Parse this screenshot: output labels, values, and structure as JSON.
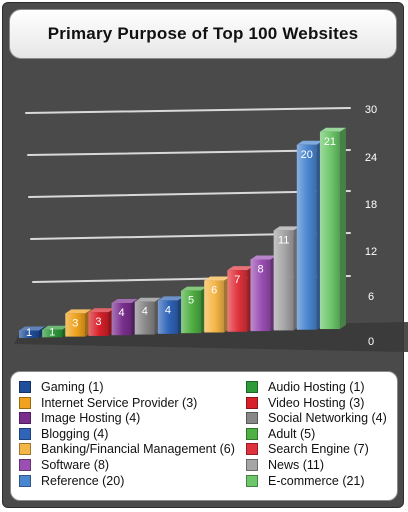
{
  "chart_data": {
    "type": "bar",
    "title": "Primary Purpose of Top 100 Websites",
    "ylim": [
      0,
      30
    ],
    "yticks": [
      "0",
      "6",
      "12",
      "18",
      "24",
      "30"
    ],
    "legend_position": "bottom",
    "categories": [
      "Gaming",
      "Audio Hosting",
      "Internet Service Provider",
      "Video Hosting",
      "Image Hosting",
      "Social Networking",
      "Blogging",
      "Adult",
      "Banking/Financial Management",
      "Search Engine",
      "Software",
      "News",
      "Reference",
      "E-commerce"
    ],
    "values": [
      1,
      1,
      3,
      3,
      4,
      4,
      4,
      5,
      6,
      7,
      8,
      11,
      20,
      21
    ],
    "colors": [
      "#1f4e9a",
      "#2e9a3a",
      "#f0a21e",
      "#d8202a",
      "#7a2f8e",
      "#888888",
      "#2f64b8",
      "#4fb043",
      "#f5b648",
      "#e0323c",
      "#9a4fb3",
      "#a5a5a5",
      "#4a86d0",
      "#6cc66a"
    ]
  },
  "legend": {
    "items": [
      {
        "label": "Gaming (1)",
        "color": "#1f4e9a"
      },
      {
        "label": "Audio Hosting (1)",
        "color": "#2e9a3a"
      },
      {
        "label": "Internet Service Provider (3)",
        "color": "#f0a21e"
      },
      {
        "label": "Video Hosting (3)",
        "color": "#d8202a"
      },
      {
        "label": "Image Hosting (4)",
        "color": "#7a2f8e"
      },
      {
        "label": "Social Networking (4)",
        "color": "#888888"
      },
      {
        "label": "Blogging (4)",
        "color": "#2f64b8"
      },
      {
        "label": "Adult (5)",
        "color": "#4fb043"
      },
      {
        "label": "Banking/Financial Management (6)",
        "color": "#f5b648"
      },
      {
        "label": "Search Engine (7)",
        "color": "#e0323c"
      },
      {
        "label": "Software (8)",
        "color": "#9a4fb3"
      },
      {
        "label": "News (11)",
        "color": "#a5a5a5"
      },
      {
        "label": "Reference (20)",
        "color": "#4a86d0"
      },
      {
        "label": "E-commerce (21)",
        "color": "#6cc66a"
      }
    ]
  }
}
